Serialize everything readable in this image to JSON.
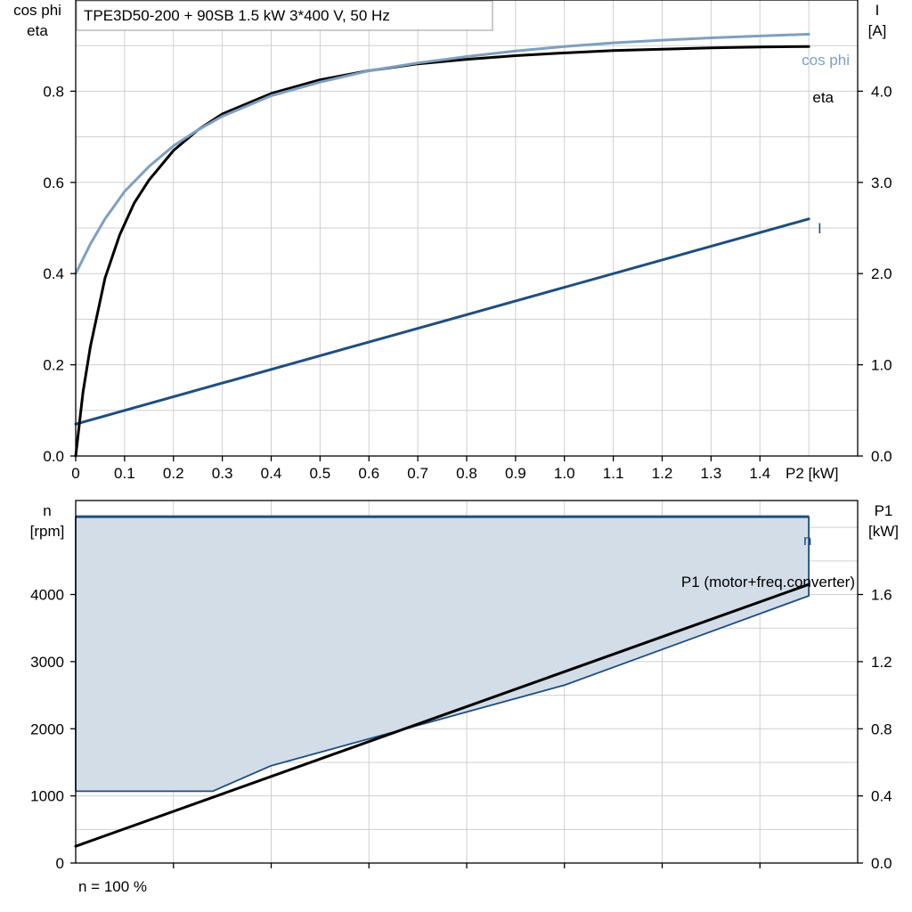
{
  "title": "TPE3D50-200 + 90SB   1.5 kW   3*400 V, 50 Hz",
  "footnote": "n = 100 %",
  "colors": {
    "grid": "#cfcfcf",
    "eta": "#000000",
    "cosphi": "#7f9fbf",
    "current": "#1f4e7f",
    "speed_fill": "#d3dde8",
    "speed_line": "#1f4e7f",
    "p1": "#000000"
  },
  "chart_data": [
    {
      "id": "efficiency",
      "type": "line",
      "x_label": "P2 [kW]",
      "left_axis_label": [
        "cos phi",
        "eta"
      ],
      "right_axis_label": [
        "I",
        "[A]"
      ],
      "x_ticks": [
        "0",
        "0.1",
        "0.2",
        "0.3",
        "0.4",
        "0.5",
        "0.6",
        "0.7",
        "0.8",
        "0.9",
        "1.0",
        "1.1",
        "1.2",
        "1.3",
        "1.4"
      ],
      "x_tick_values": [
        0,
        0.1,
        0.2,
        0.3,
        0.4,
        0.5,
        0.6,
        0.7,
        0.8,
        0.9,
        1.0,
        1.1,
        1.2,
        1.3,
        1.4
      ],
      "xlim": [
        0,
        1.6
      ],
      "left_ticks": [
        "0.0",
        "0.2",
        "0.4",
        "0.6",
        "0.8"
      ],
      "left_tick_values": [
        0,
        0.2,
        0.4,
        0.6,
        0.8
      ],
      "left_ylim": [
        0,
        1.0
      ],
      "right_ticks": [
        "0.0",
        "1.0",
        "2.0",
        "3.0",
        "4.0"
      ],
      "right_tick_values": [
        0,
        1.0,
        2.0,
        3.0,
        4.0
      ],
      "right_ylim": [
        0,
        5.0
      ],
      "grid": true,
      "series": [
        {
          "name": "eta",
          "axis": "left",
          "color_key": "eta",
          "x": [
            0,
            0.015,
            0.03,
            0.06,
            0.09,
            0.12,
            0.15,
            0.2,
            0.25,
            0.3,
            0.4,
            0.5,
            0.6,
            0.7,
            0.8,
            0.9,
            1.0,
            1.1,
            1.2,
            1.3,
            1.4,
            1.5
          ],
          "y": [
            0.0,
            0.14,
            0.24,
            0.39,
            0.485,
            0.555,
            0.605,
            0.67,
            0.715,
            0.75,
            0.795,
            0.825,
            0.845,
            0.86,
            0.87,
            0.878,
            0.884,
            0.889,
            0.892,
            0.895,
            0.897,
            0.898
          ]
        },
        {
          "name": "cos phi",
          "axis": "left",
          "color_key": "cosphi",
          "x": [
            0,
            0.03,
            0.06,
            0.1,
            0.15,
            0.2,
            0.25,
            0.3,
            0.4,
            0.5,
            0.6,
            0.7,
            0.8,
            0.9,
            1.0,
            1.1,
            1.2,
            1.3,
            1.4,
            1.5
          ],
          "y": [
            0.4,
            0.465,
            0.52,
            0.58,
            0.635,
            0.68,
            0.715,
            0.745,
            0.79,
            0.82,
            0.845,
            0.862,
            0.876,
            0.888,
            0.898,
            0.906,
            0.912,
            0.917,
            0.921,
            0.925
          ]
        },
        {
          "name": "I",
          "axis": "right",
          "color_key": "current",
          "x": [
            0,
            1.5
          ],
          "y": [
            0.35,
            2.6
          ]
        }
      ]
    },
    {
      "id": "speed_power",
      "type": "area",
      "left_axis_label": [
        "n",
        "[rpm]"
      ],
      "right_axis_label": [
        "P1",
        "[kW]"
      ],
      "xlim": [
        0,
        1.6
      ],
      "x_grid_values": [
        0.2,
        0.4,
        0.6,
        0.8,
        1.0,
        1.2,
        1.4
      ],
      "left_ticks": [
        "0",
        "1000",
        "2000",
        "3000",
        "4000"
      ],
      "left_tick_values": [
        0,
        1000,
        2000,
        3000,
        4000
      ],
      "left_ylim": [
        0,
        5400
      ],
      "right_ticks": [
        "0.0",
        "0.4",
        "0.8",
        "1.2",
        "1.6"
      ],
      "right_tick_values": [
        0,
        0.4,
        0.8,
        1.2,
        1.6
      ],
      "right_ylim": [
        0,
        2.16
      ],
      "grid": true,
      "n_region": {
        "name": "n",
        "x_max": [
          0,
          1.5
        ],
        "n_max": [
          5160,
          5160
        ],
        "x_min": [
          0,
          0.28,
          0.4,
          0.8,
          1.0,
          1.5
        ],
        "n_min": [
          1070,
          1070,
          1450,
          2250,
          2650,
          3980
        ]
      },
      "series": [
        {
          "name": "P1 (motor+freq.converter)",
          "axis": "right",
          "color_key": "p1",
          "x": [
            0,
            1.5
          ],
          "y": [
            0.1,
            1.66
          ]
        }
      ]
    }
  ]
}
